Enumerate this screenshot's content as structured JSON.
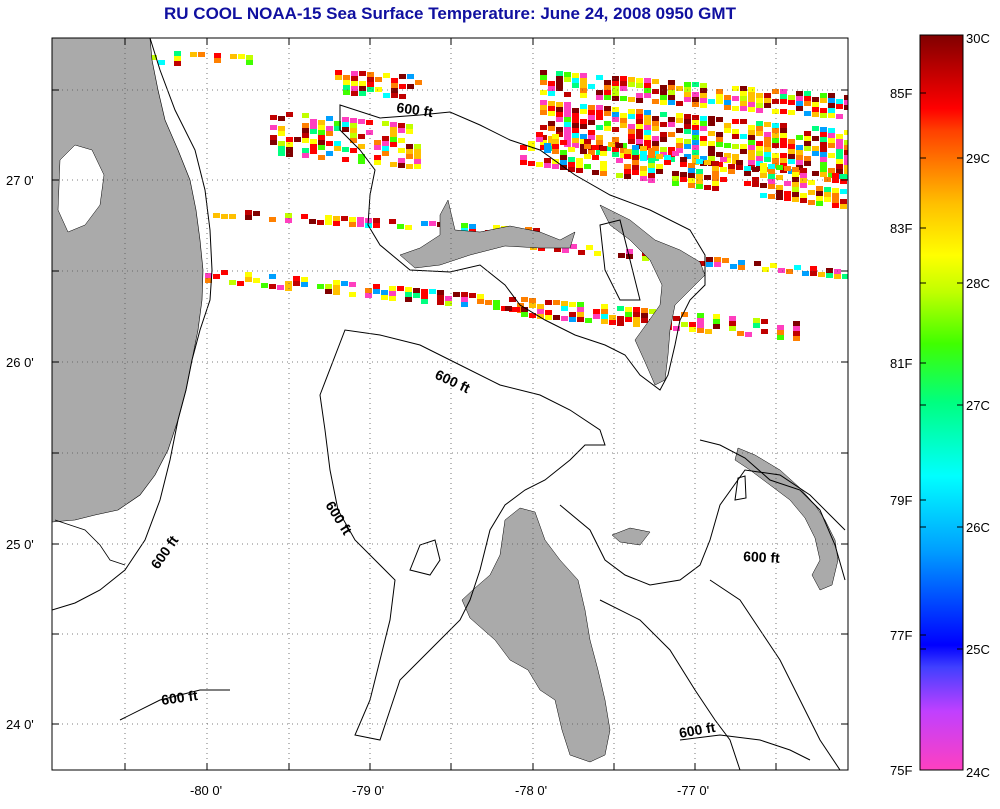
{
  "title": "RU COOL  NOAA-15  Sea Surface Temperature:  June 24, 2008 0950 GMT",
  "axes": {
    "x_ticks": [
      "-80 0'",
      "-79 0'",
      "-78 0'",
      "-77 0'"
    ],
    "y_ticks": [
      "27 0'",
      "26 0'",
      "25 0'",
      "24 0'"
    ]
  },
  "contour_labels": [
    "600 ft",
    "600 ft",
    "600 ft",
    "600 ft",
    "600 ft",
    "600 ft",
    "600 ft"
  ],
  "colorbar": {
    "celsius": [
      "30C",
      "29C",
      "28C",
      "27C",
      "26C",
      "25C",
      "24C"
    ],
    "fahrenheit": [
      "85F",
      "83F",
      "81F",
      "79F",
      "77F",
      "75F"
    ],
    "colors": [
      "#ff40c0",
      "#c040ff",
      "#4040ff",
      "#0000ff",
      "#00a0ff",
      "#00ffff",
      "#00ff80",
      "#40ff00",
      "#c0ff00",
      "#ffff00",
      "#ffc000",
      "#ff8000",
      "#ff4000",
      "#ff0000",
      "#c00000",
      "#800000"
    ]
  },
  "colors": {
    "land": "#aaaaaa",
    "title": "#1010a0",
    "sst_palette": [
      "#ff3fbf",
      "#ff0000",
      "#c00000",
      "#800000",
      "#ff8000",
      "#ffc000",
      "#ffff00",
      "#c0ff00",
      "#40ff00",
      "#00ff80",
      "#00ffff",
      "#00a0ff"
    ]
  }
}
